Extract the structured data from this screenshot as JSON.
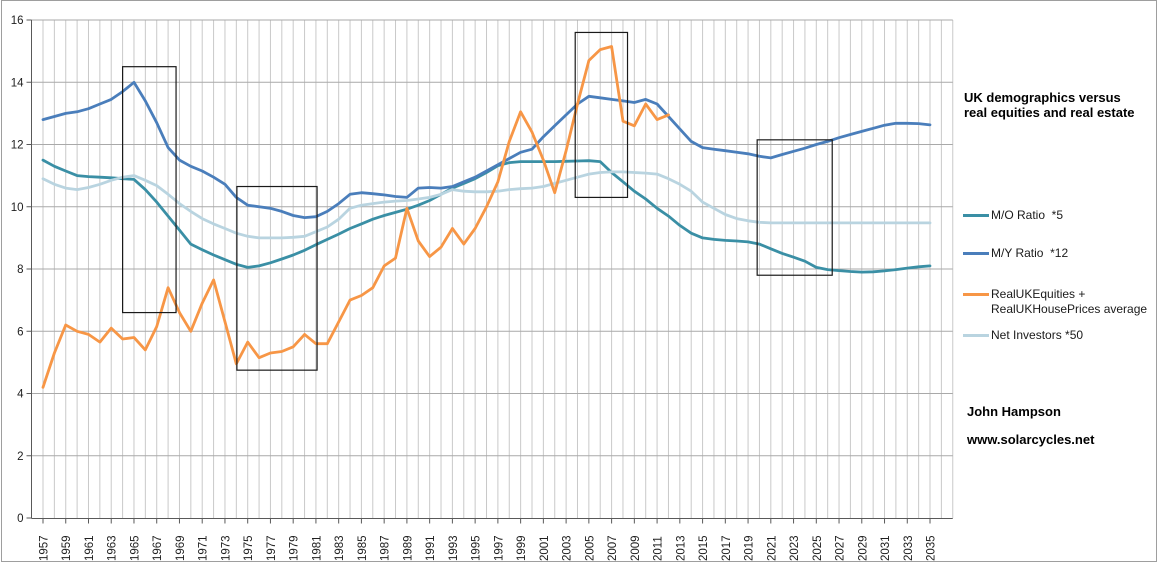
{
  "colors": {
    "mo_teal": "#3A8FA5",
    "my_blue": "#4A7EBB",
    "equities_orange": "#F79646",
    "net_investors_lightblue": "#B9D4E0",
    "grid_vertical": "#C9C9C9",
    "grid_horizontal": "#A9A9A9",
    "axis": "#595959",
    "frame": "#9E9E9E",
    "annotation_box": "#1A1A1A",
    "tick_text": "#202020"
  },
  "side_panel": {
    "title": "UK demographics versus real equities and real estate",
    "footer_author": "John Hampson",
    "footer_site": "www.solarcycles.net"
  },
  "legend": [
    {
      "label": "M/O Ratio  *5",
      "color": "#3A8FA5"
    },
    {
      "label": "M/Y Ratio  *12",
      "color": "#4A7EBB"
    },
    {
      "label": "RealUKEquities + RealUKHousePrices average",
      "color": "#F79646"
    },
    {
      "label": "Net Investors *50",
      "color": "#B9D4E0"
    }
  ],
  "chart_data": {
    "type": "line",
    "title": "UK demographics versus real equities and real estate",
    "xlabel": "",
    "ylabel": "",
    "xlim": [
      1957,
      2037
    ],
    "ylim": [
      0,
      16
    ],
    "y_ticks": [
      0,
      2,
      4,
      6,
      8,
      10,
      12,
      14,
      16
    ],
    "x_ticks": [
      1957,
      1959,
      1961,
      1963,
      1965,
      1967,
      1969,
      1971,
      1973,
      1975,
      1977,
      1979,
      1981,
      1983,
      1985,
      1987,
      1989,
      1991,
      1993,
      1995,
      1997,
      1999,
      2001,
      2003,
      2005,
      2007,
      2009,
      2011,
      2013,
      2015,
      2017,
      2019,
      2021,
      2023,
      2025,
      2027,
      2029,
      2031,
      2033,
      2035
    ],
    "grid": {
      "vertical": "every year",
      "horizontal": "every 2 units"
    },
    "legend_position": "right",
    "x": [
      1957,
      1958,
      1959,
      1960,
      1961,
      1962,
      1963,
      1964,
      1965,
      1966,
      1967,
      1968,
      1969,
      1970,
      1971,
      1972,
      1973,
      1974,
      1975,
      1976,
      1977,
      1978,
      1979,
      1980,
      1981,
      1982,
      1983,
      1984,
      1985,
      1986,
      1987,
      1988,
      1989,
      1990,
      1991,
      1992,
      1993,
      1994,
      1995,
      1996,
      1997,
      1998,
      1999,
      2000,
      2001,
      2002,
      2003,
      2004,
      2005,
      2006,
      2007,
      2008,
      2009,
      2010,
      2011,
      2012,
      2013,
      2014,
      2015,
      2016,
      2017,
      2018,
      2019,
      2020,
      2021,
      2022,
      2023,
      2024,
      2025,
      2026,
      2027,
      2028,
      2029,
      2030,
      2031,
      2032,
      2033,
      2034,
      2035
    ],
    "series": [
      {
        "name": "M/O Ratio  *5",
        "color": "#3A8FA5",
        "values": [
          11.5,
          11.3,
          11.15,
          11.0,
          10.97,
          10.95,
          10.93,
          10.9,
          10.88,
          10.55,
          10.15,
          9.7,
          9.25,
          8.8,
          8.62,
          8.45,
          8.3,
          8.15,
          8.05,
          8.1,
          8.2,
          8.32,
          8.45,
          8.6,
          8.78,
          8.95,
          9.12,
          9.3,
          9.45,
          9.6,
          9.72,
          9.82,
          9.92,
          10.05,
          10.2,
          10.4,
          10.6,
          10.75,
          10.9,
          11.1,
          11.32,
          11.42,
          11.45,
          11.45,
          11.45,
          11.45,
          11.46,
          11.47,
          11.48,
          11.45,
          11.1,
          10.8,
          10.5,
          10.25,
          9.95,
          9.7,
          9.4,
          9.15,
          9.0,
          8.95,
          8.92,
          8.9,
          8.87,
          8.8,
          8.65,
          8.5,
          8.38,
          8.25,
          8.05,
          7.98,
          7.95,
          7.92,
          7.9,
          7.91,
          7.94,
          7.98,
          8.03,
          8.07,
          8.1
        ]
      },
      {
        "name": "M/Y Ratio  *12",
        "color": "#4A7EBB",
        "values": [
          12.8,
          12.9,
          13.0,
          13.05,
          13.15,
          13.3,
          13.45,
          13.7,
          14.0,
          13.4,
          12.7,
          11.9,
          11.5,
          11.3,
          11.15,
          10.95,
          10.72,
          10.3,
          10.05,
          10.0,
          9.95,
          9.85,
          9.72,
          9.65,
          9.68,
          9.85,
          10.1,
          10.4,
          10.45,
          10.42,
          10.38,
          10.33,
          10.3,
          10.6,
          10.62,
          10.6,
          10.65,
          10.8,
          10.95,
          11.15,
          11.35,
          11.55,
          11.75,
          11.85,
          12.25,
          12.6,
          12.95,
          13.3,
          13.55,
          13.5,
          13.45,
          13.4,
          13.35,
          13.45,
          13.3,
          12.9,
          12.5,
          12.1,
          11.9,
          11.85,
          11.8,
          11.75,
          11.7,
          11.62,
          11.57,
          11.68,
          11.78,
          11.88,
          12.0,
          12.1,
          12.22,
          12.32,
          12.42,
          12.52,
          12.62,
          12.68,
          12.68,
          12.67,
          12.63
        ]
      },
      {
        "name": "Net Investors *50",
        "color": "#B9D4E0",
        "values": [
          10.9,
          10.72,
          10.6,
          10.55,
          10.62,
          10.72,
          10.85,
          10.95,
          11.0,
          10.85,
          10.68,
          10.4,
          10.1,
          9.85,
          9.62,
          9.45,
          9.3,
          9.15,
          9.05,
          9.0,
          9.0,
          9.0,
          9.02,
          9.05,
          9.2,
          9.35,
          9.6,
          9.95,
          10.05,
          10.1,
          10.15,
          10.18,
          10.2,
          10.25,
          10.3,
          10.4,
          10.55,
          10.5,
          10.48,
          10.48,
          10.5,
          10.55,
          10.58,
          10.6,
          10.65,
          10.75,
          10.85,
          10.95,
          11.05,
          11.1,
          11.12,
          11.12,
          11.1,
          11.08,
          11.05,
          10.9,
          10.72,
          10.5,
          10.15,
          9.95,
          9.75,
          9.62,
          9.55,
          9.5,
          9.48,
          9.48,
          9.48,
          9.48,
          9.48,
          9.48,
          9.48,
          9.48,
          9.48,
          9.48,
          9.48,
          9.48,
          9.48,
          9.48,
          9.48
        ]
      },
      {
        "name": "RealUKEquities + RealUKHousePrices average",
        "color": "#F79646",
        "values": [
          4.2,
          5.3,
          6.2,
          6.0,
          5.9,
          5.65,
          6.1,
          5.75,
          5.8,
          5.4,
          6.15,
          7.4,
          6.6,
          6.0,
          6.9,
          7.65,
          6.3,
          4.95,
          5.65,
          5.15,
          5.3,
          5.35,
          5.5,
          5.9,
          5.6,
          5.6,
          6.3,
          7.0,
          7.15,
          7.4,
          8.1,
          8.35,
          9.95,
          8.9,
          8.4,
          8.7,
          9.3,
          8.8,
          9.3,
          10.0,
          10.8,
          12.1,
          13.05,
          12.4,
          11.5,
          10.45,
          11.8,
          13.3,
          14.7,
          15.05,
          15.15,
          12.75,
          12.6,
          13.3,
          12.8,
          12.95,
          null,
          null,
          null,
          null,
          null,
          null,
          null,
          null,
          null,
          null,
          null,
          null,
          null,
          null,
          null,
          null,
          null,
          null,
          null,
          null,
          null,
          null,
          null
        ]
      }
    ],
    "annotations": [
      {
        "type": "box",
        "x1": 1964.0,
        "x2": 1968.7,
        "y1": 6.6,
        "y2": 14.5
      },
      {
        "type": "box",
        "x1": 1974.05,
        "x2": 1981.1,
        "y1": 4.75,
        "y2": 10.65
      },
      {
        "type": "box",
        "x1": 2003.8,
        "x2": 2008.4,
        "y1": 10.3,
        "y2": 15.6
      },
      {
        "type": "box",
        "x1": 2019.8,
        "x2": 2026.4,
        "y1": 7.8,
        "y2": 12.15
      }
    ]
  }
}
